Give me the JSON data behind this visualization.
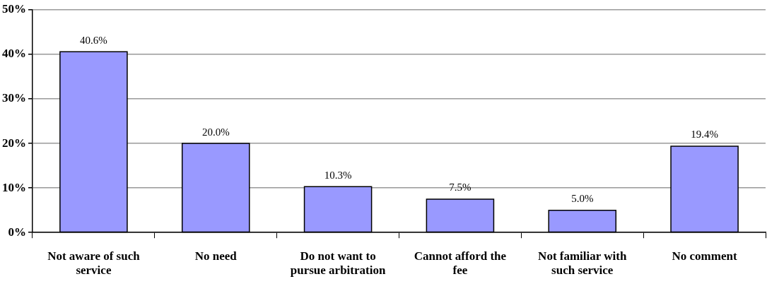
{
  "chart_data": {
    "type": "bar",
    "categories": [
      "Not aware of such service",
      "No need",
      "Do not want to pursue arbitration",
      "Cannot afford the fee",
      "Not familiar with such service",
      "No comment"
    ],
    "values": [
      40.6,
      20.0,
      10.3,
      7.5,
      5.0,
      19.4
    ],
    "value_labels": [
      "40.6%",
      "20.0%",
      "10.3%",
      "7.5%",
      "5.0%",
      "19.4%"
    ],
    "color": "#9999ff",
    "ylim": [
      0,
      50
    ],
    "yticks": [
      {
        "value": 0,
        "label": "0%"
      },
      {
        "value": 10,
        "label": "10%"
      },
      {
        "value": 20,
        "label": "20%"
      },
      {
        "value": 30,
        "label": "30%"
      },
      {
        "value": 40,
        "label": "40%"
      },
      {
        "value": 50,
        "label": "50%"
      }
    ],
    "grid": "y",
    "legend": false
  }
}
